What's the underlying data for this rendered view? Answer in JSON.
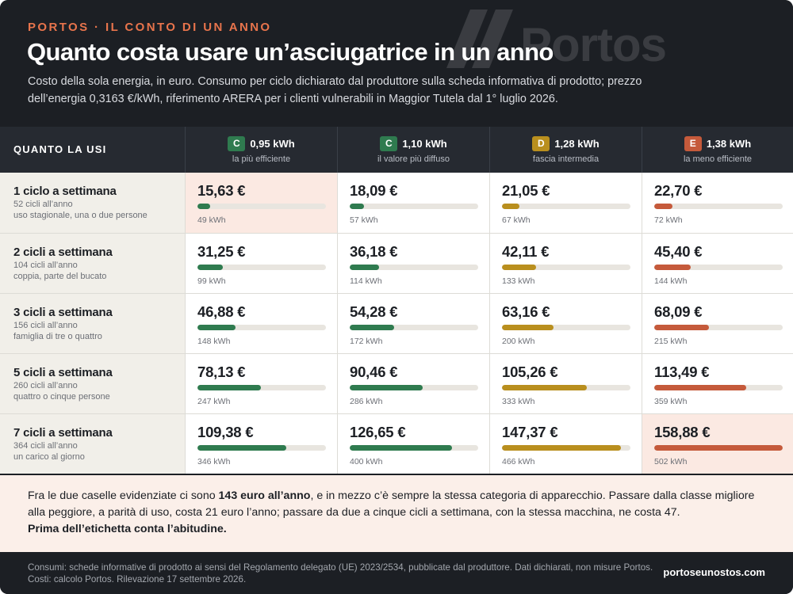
{
  "header": {
    "kicker": "Portos · il conto di un anno",
    "title": "Quanto costa usare un’asciugatrice in un anno",
    "subtitle": "Costo della sola energia, in euro. Consumo per ciclo dichiarato dal produttore sulla scheda informativa di prodotto; prezzo dell’energia 0,3163 €/kWh, riferimento ARERA per i clienti vulnerabili in Maggior Tutela dal 1° luglio 2026.",
    "watermark_text": "Portos"
  },
  "chart_data": {
    "type": "table",
    "row_header_label": "QUANTO LA USI",
    "unit": "€",
    "bar_max_kwh": 502,
    "columns": [
      {
        "class": "C",
        "kwh_per_cycle": "0,95 kWh",
        "desc": "la più efficiente",
        "color": "#2f7b4f"
      },
      {
        "class": "C",
        "kwh_per_cycle": "1,10 kWh",
        "desc": "il valore più diffuso",
        "color": "#2f7b4f"
      },
      {
        "class": "D",
        "kwh_per_cycle": "1,28 kWh",
        "desc": "fascia intermedia",
        "color": "#b98f1e"
      },
      {
        "class": "E",
        "kwh_per_cycle": "1,38 kWh",
        "desc": "la meno efficiente",
        "color": "#c55a3b"
      }
    ],
    "rows": [
      {
        "label": "1 ciclo a settimana",
        "cycles": "52 cicli all’anno",
        "note": "uso stagionale, una o due persone",
        "costs": [
          "15,63 €",
          "18,09 €",
          "21,05 €",
          "22,70 €"
        ],
        "kwh": [
          49,
          57,
          67,
          72
        ]
      },
      {
        "label": "2 cicli a settimana",
        "cycles": "104 cicli all’anno",
        "note": "coppia, parte del bucato",
        "costs": [
          "31,25 €",
          "36,18 €",
          "42,11 €",
          "45,40 €"
        ],
        "kwh": [
          99,
          114,
          133,
          144
        ]
      },
      {
        "label": "3 cicli a settimana",
        "cycles": "156 cicli all’anno",
        "note": "famiglia di tre o quattro",
        "costs": [
          "46,88 €",
          "54,28 €",
          "63,16 €",
          "68,09 €"
        ],
        "kwh": [
          148,
          172,
          200,
          215
        ]
      },
      {
        "label": "5 cicli a settimana",
        "cycles": "260 cicli all’anno",
        "note": "quattro o cinque persone",
        "costs": [
          "78,13 €",
          "90,46 €",
          "105,26 €",
          "113,49 €"
        ],
        "kwh": [
          247,
          286,
          333,
          359
        ]
      },
      {
        "label": "7 cicli a settimana",
        "cycles": "364 cicli all’anno",
        "note": "un carico al giorno",
        "costs": [
          "109,38 €",
          "126,65 €",
          "147,37 €",
          "158,88 €"
        ],
        "kwh": [
          346,
          400,
          466,
          502
        ]
      }
    ],
    "highlighted": [
      {
        "row": 0,
        "col": 0
      },
      {
        "row": 4,
        "col": 3
      }
    ]
  },
  "note": {
    "part1": "Fra le due caselle evidenziate ci sono ",
    "bold1": "143 euro all’anno",
    "part2": ", e in mezzo c’è sempre la stessa categoria di apparecchio. Passare dalla classe migliore alla peggiore, a parità di uso, costa 21 euro l’anno; passare da due a cinque cicli a settimana, con la stessa macchina, ne costa 47.",
    "bold2": "Prima dell’etichetta conta l’abitudine."
  },
  "footer": {
    "source": "Consumi: schede informative di prodotto ai sensi del Regolamento delegato (UE) 2023/2534, pubblicate dal produttore. Dati dichiarati, non misure Portos. Costi: calcolo Portos. Rilevazione 17 settembre 2026.",
    "site": "portoseunostos.com"
  }
}
